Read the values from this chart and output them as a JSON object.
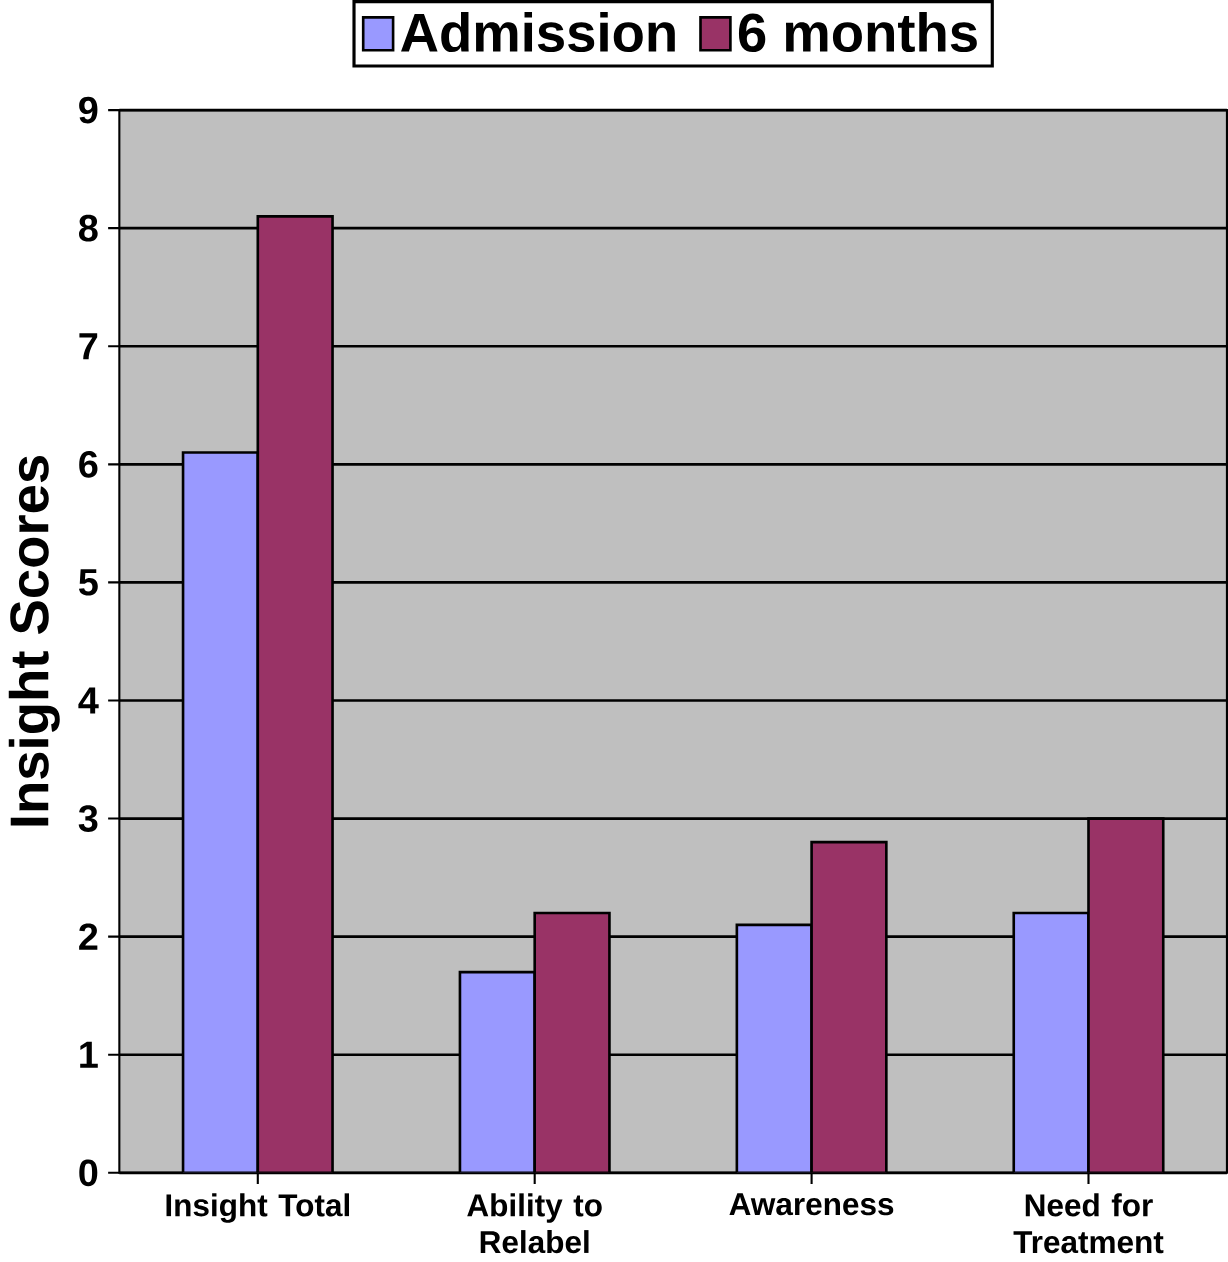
{
  "chart_data": {
    "type": "bar",
    "ylabel": "Insight Scores",
    "categories": [
      "Insight Total",
      "Ability to Relabel",
      "Awareness",
      "Need for Treatment"
    ],
    "series": [
      {
        "name": "Admission",
        "color": "#9999ff",
        "values": [
          6.1,
          1.7,
          2.1,
          2.2
        ]
      },
      {
        "name": "6 months",
        "color": "#993366",
        "values": [
          8.1,
          2.2,
          2.8,
          3.0
        ]
      }
    ],
    "ylim": [
      0,
      9
    ],
    "yticks": [
      0,
      1,
      2,
      3,
      4,
      5,
      6,
      7,
      8,
      9
    ],
    "grid": "y",
    "legend": "top"
  }
}
